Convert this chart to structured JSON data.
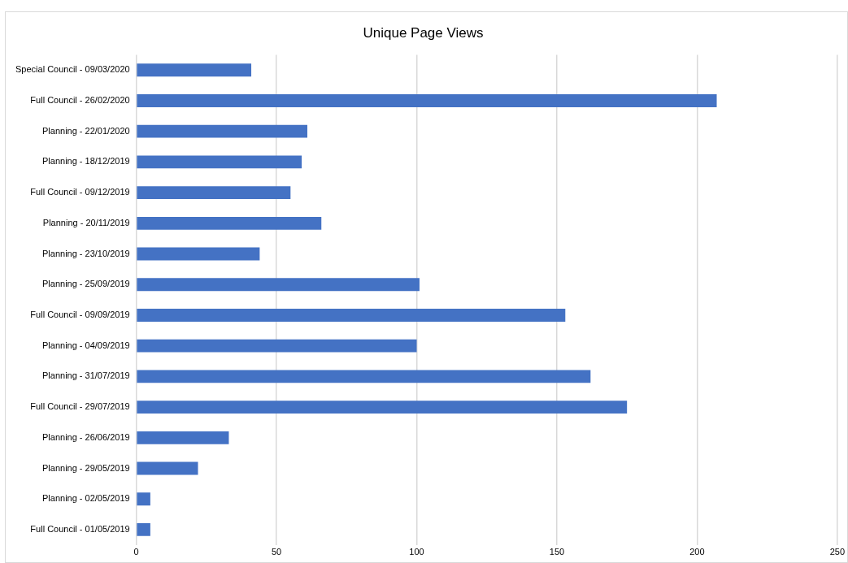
{
  "chart_data": {
    "type": "bar",
    "orientation": "horizontal",
    "title": "Unique Page Views",
    "categories": [
      "Special Council - 09/03/2020",
      "Full Council - 26/02/2020",
      "Planning - 22/01/2020",
      "Planning - 18/12/2019",
      "Full Council - 09/12/2019",
      "Planning - 20/11/2019",
      "Planning - 23/10/2019",
      "Planning - 25/09/2019",
      "Full Council - 09/09/2019",
      "Planning - 04/09/2019",
      "Planning - 31/07/2019",
      "Full Council - 29/07/2019",
      "Planning - 26/06/2019",
      "Planning - 29/05/2019",
      "Planning - 02/05/2019",
      "Full Council - 01/05/2019"
    ],
    "values": [
      41,
      207,
      61,
      59,
      55,
      66,
      44,
      101,
      153,
      100,
      162,
      175,
      33,
      22,
      5,
      5
    ],
    "color": "#4472c4",
    "xlim": [
      0,
      250
    ],
    "xticks": [
      0,
      50,
      100,
      150,
      200,
      250
    ],
    "grid": "x",
    "legend": false
  }
}
